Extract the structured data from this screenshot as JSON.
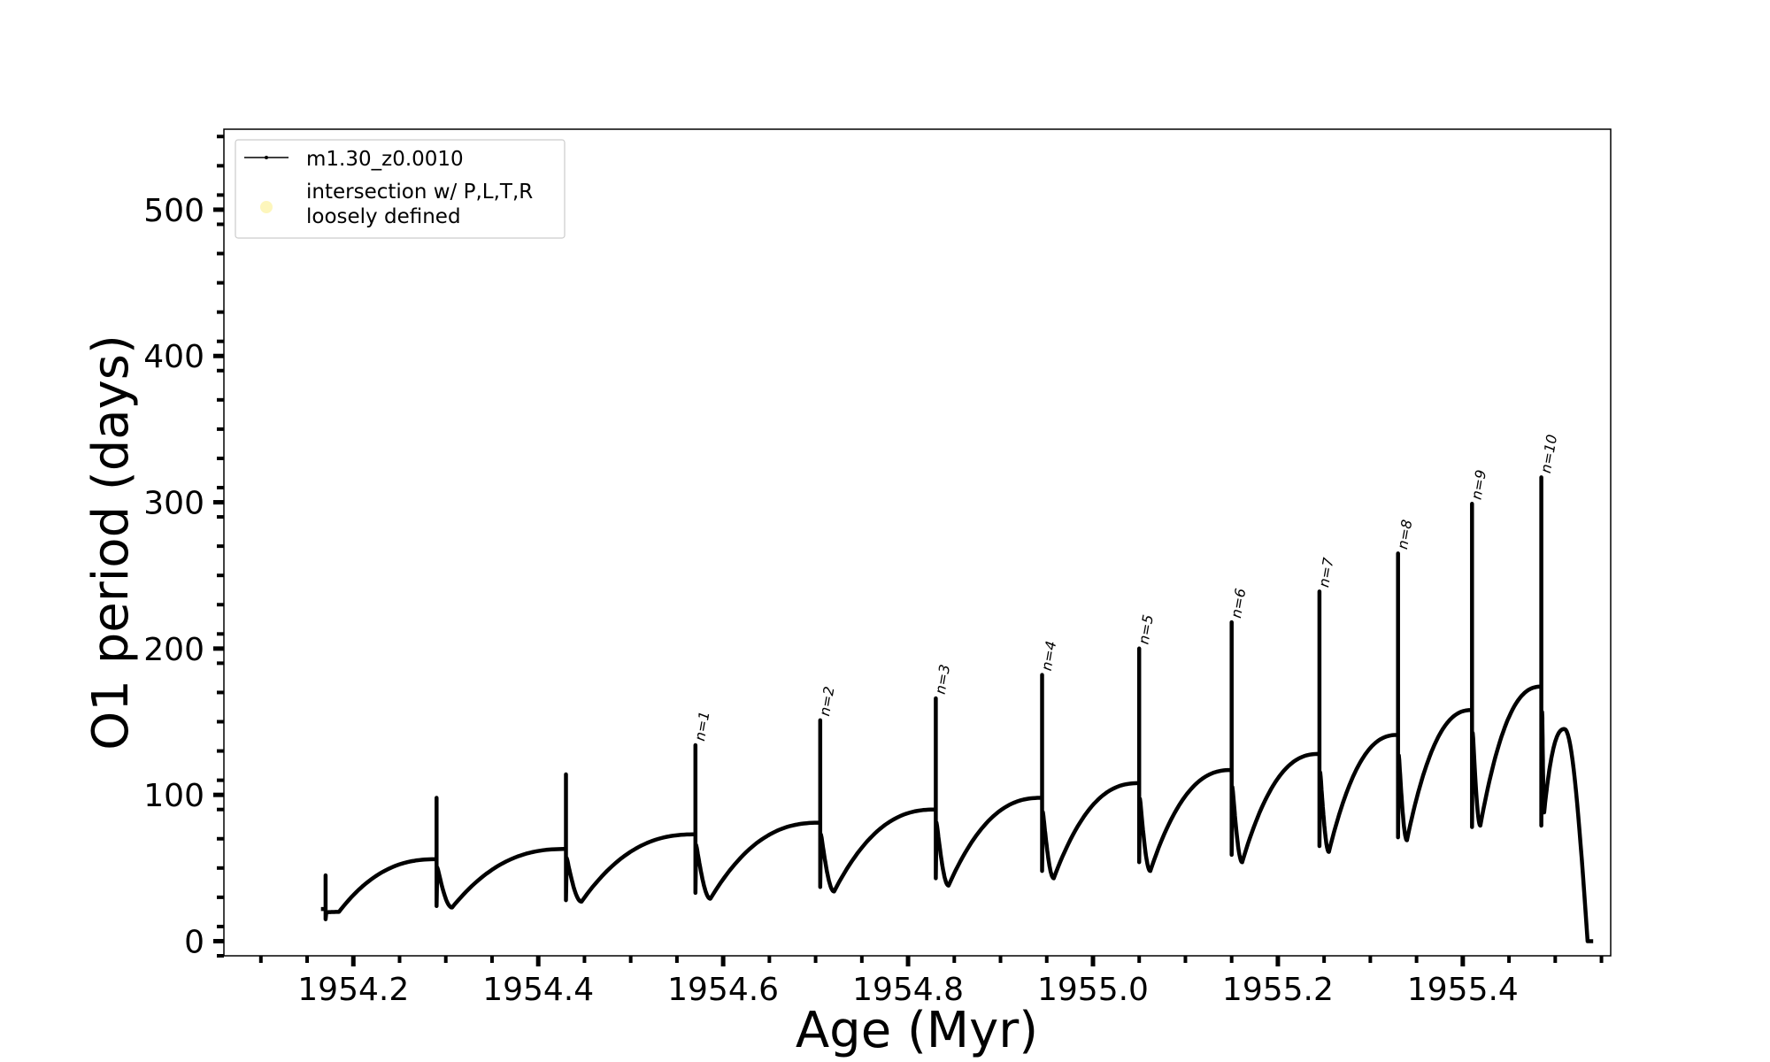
{
  "chart_data": {
    "type": "line",
    "title": "",
    "xlabel": "Age (Myr)",
    "ylabel": "O1 period (days)",
    "xlim": [
      1954.06,
      1955.56
    ],
    "ylim": [
      -10,
      555
    ],
    "x_ticks": [
      1954.2,
      1954.4,
      1954.6,
      1954.8,
      1955.0,
      1955.2,
      1955.4
    ],
    "x_tick_labels": [
      "1954.2",
      "1954.4",
      "1954.6",
      "1954.8",
      "1955.0",
      "1955.2",
      "1955.4"
    ],
    "y_ticks": [
      0,
      100,
      200,
      300,
      400,
      500
    ],
    "y_tick_labels": [
      "0",
      "100",
      "200",
      "300",
      "400",
      "500"
    ],
    "grid": false,
    "legend_position": "top-left",
    "legend": [
      {
        "label": "m1.30_z0.0010",
        "marker": "line-dot",
        "color": "#000000"
      },
      {
        "label": "intersection w/ P,L,T,R\nloosely defined",
        "marker": "circle",
        "color": "#fdf5b0"
      }
    ],
    "series": [
      {
        "name": "m1.30_z0.0010",
        "color": "#000000",
        "start": {
          "x": 1954.165,
          "y": 22
        },
        "pulses": [
          {
            "x": 1954.17,
            "peak": 45,
            "min": 15,
            "pre": 22,
            "trough": 20,
            "label": ""
          },
          {
            "x": 1954.29,
            "peak": 98,
            "min": 24,
            "pre": 56,
            "trough": 23,
            "label": ""
          },
          {
            "x": 1954.43,
            "peak": 114,
            "min": 28,
            "pre": 63,
            "trough": 27,
            "label": ""
          },
          {
            "x": 1954.57,
            "peak": 134,
            "min": 33,
            "pre": 73,
            "trough": 29,
            "label": "n=1"
          },
          {
            "x": 1954.705,
            "peak": 151,
            "min": 37,
            "pre": 81,
            "trough": 34,
            "label": "n=2"
          },
          {
            "x": 1954.83,
            "peak": 166,
            "min": 43,
            "pre": 90,
            "trough": 38,
            "label": "n=3"
          },
          {
            "x": 1954.945,
            "peak": 182,
            "min": 48,
            "pre": 98,
            "trough": 43,
            "label": "n=4"
          },
          {
            "x": 1955.05,
            "peak": 200,
            "min": 54,
            "pre": 108,
            "trough": 48,
            "label": "n=5"
          },
          {
            "x": 1955.15,
            "peak": 218,
            "min": 59,
            "pre": 117,
            "trough": 54,
            "label": "n=6"
          },
          {
            "x": 1955.245,
            "peak": 239,
            "min": 65,
            "pre": 128,
            "trough": 61,
            "label": "n=7"
          },
          {
            "x": 1955.33,
            "peak": 265,
            "min": 71,
            "pre": 141,
            "trough": 69,
            "label": "n=8"
          },
          {
            "x": 1955.41,
            "peak": 299,
            "min": 78,
            "pre": 158,
            "trough": 79,
            "label": "n=9"
          },
          {
            "x": 1955.485,
            "peak": 317,
            "min": 79,
            "pre": 174,
            "trough": 88,
            "label": "n=10"
          }
        ],
        "end_hump": {
          "x": 1955.51,
          "y": 145
        },
        "end": {
          "x": 1955.535,
          "y": 0
        }
      }
    ]
  }
}
